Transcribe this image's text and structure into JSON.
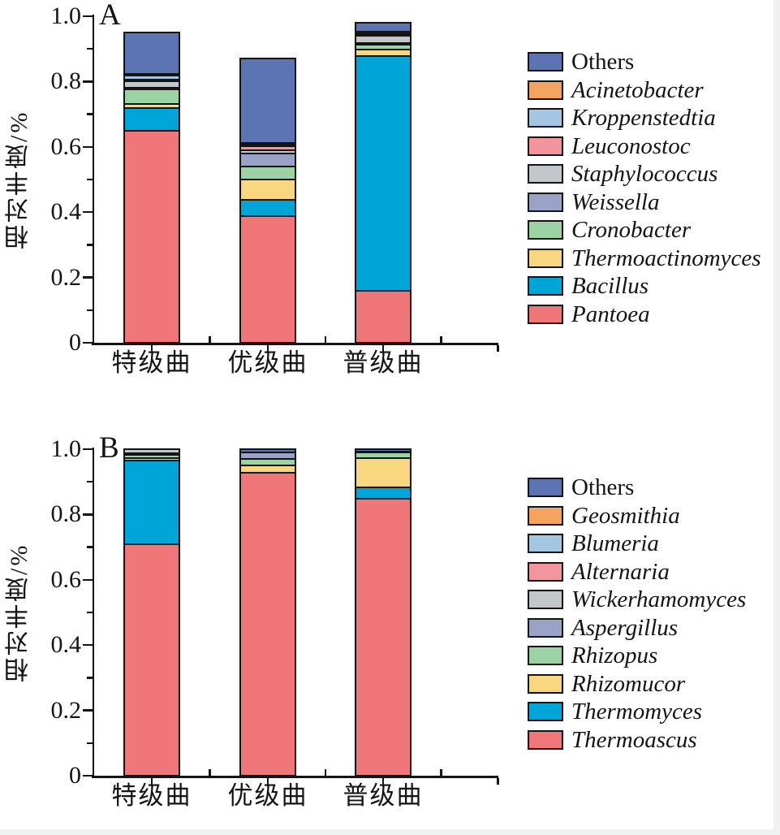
{
  "figure": {
    "description_visible_text_only": true,
    "panels_count": 2
  },
  "chart_data": [
    {
      "panel_label": "A",
      "type": "bar",
      "stacked": true,
      "title": "",
      "ylabel": "相对丰度/%",
      "xlabel": "",
      "ylim": [
        0,
        1.0
      ],
      "ytick_labels": [
        "0",
        "0.2",
        "0.4",
        "0.6",
        "0.8",
        "1.0"
      ],
      "ytick_values": [
        0,
        0.2,
        0.4,
        0.6,
        0.8,
        1.0
      ],
      "ytick_minor_step": 0.1,
      "grid": false,
      "legend_position": "right",
      "categories": [
        "特级曲",
        "优级曲",
        "普级曲"
      ],
      "bar_totals": [
        0.95,
        0.87,
        0.98
      ],
      "legend_order_top_to_bottom": [
        "Others",
        "Acinetobacter",
        "Kroppenstedtia",
        "Leuconostoc",
        "Staphylococcus",
        "Weissella",
        "Cronobacter",
        "Thermoactinomyces",
        "Bacillus",
        "Pantoea"
      ],
      "series": [
        {
          "name": "Pantoea",
          "color": "#F07679",
          "italic": true,
          "values": [
            0.65,
            0.39,
            0.16
          ]
        },
        {
          "name": "Bacillus",
          "color": "#00A5D8",
          "italic": true,
          "values": [
            0.07,
            0.05,
            0.72
          ]
        },
        {
          "name": "Thermoactinomyces",
          "color": "#F9D781",
          "italic": true,
          "values": [
            0.012,
            0.06,
            0.02
          ]
        },
        {
          "name": "Cronobacter",
          "color": "#9CD3A4",
          "italic": true,
          "values": [
            0.045,
            0.04,
            0.015
          ]
        },
        {
          "name": "Weissella",
          "color": "#98A3C7",
          "italic": true,
          "values": [
            0.006,
            0.04,
            0.004
          ]
        },
        {
          "name": "Staphylococcus",
          "color": "#C3C7C9",
          "italic": true,
          "values": [
            0.02,
            0.012,
            0.025
          ]
        },
        {
          "name": "Leuconostoc",
          "color": "#F2949B",
          "italic": true,
          "values": [
            0.004,
            0.012,
            0.003
          ]
        },
        {
          "name": "Kroppenstedtia",
          "color": "#A3C6E2",
          "italic": true,
          "values": [
            0.015,
            0.006,
            0.004
          ]
        },
        {
          "name": "Acinetobacter",
          "color": "#F5A45F",
          "italic": true,
          "values": [
            0.003,
            0.004,
            0.003
          ]
        },
        {
          "name": "Others",
          "color": "#5C74B4",
          "italic": false,
          "values": [
            0.125,
            0.256,
            0.026
          ]
        }
      ]
    },
    {
      "panel_label": "B",
      "type": "bar",
      "stacked": true,
      "title": "",
      "ylabel": "相对丰度/%",
      "xlabel": "",
      "ylim": [
        0,
        1.0
      ],
      "ytick_labels": [
        "0",
        "0.2",
        "0.4",
        "0.6",
        "0.8",
        "1.0"
      ],
      "ytick_values": [
        0,
        0.2,
        0.4,
        0.6,
        0.8,
        1.0
      ],
      "ytick_minor_step": 0.1,
      "grid": false,
      "legend_position": "right",
      "categories": [
        "特级曲",
        "优级曲",
        "普级曲"
      ],
      "bar_totals": [
        1.0,
        1.0,
        1.0
      ],
      "legend_order_top_to_bottom": [
        "Others",
        "Geosmithia",
        "Blumeria",
        "Alternaria",
        "Wickerhamomyces",
        "Aspergillus",
        "Rhizopus",
        "Rhizomucor",
        "Thermomyces",
        "Thermoascus"
      ],
      "series": [
        {
          "name": "Thermoascus",
          "color": "#F07679",
          "italic": true,
          "values": [
            0.71,
            0.93,
            0.85
          ]
        },
        {
          "name": "Thermomyces",
          "color": "#00A5D8",
          "italic": true,
          "values": [
            0.257,
            0,
            0.035
          ]
        },
        {
          "name": "Rhizomucor",
          "color": "#F9D781",
          "italic": true,
          "values": [
            0.008,
            0.022,
            0.09
          ]
        },
        {
          "name": "Rhizopus",
          "color": "#9CD3A4",
          "italic": true,
          "values": [
            0.009,
            0.02,
            0.018
          ]
        },
        {
          "name": "Aspergillus",
          "color": "#98A3C7",
          "italic": true,
          "values": [
            0.004,
            0.02,
            0
          ]
        },
        {
          "name": "Wickerhamomyces",
          "color": "#C3C7C9",
          "italic": true,
          "values": [
            0.012,
            0,
            0.004
          ]
        },
        {
          "name": "Alternaria",
          "color": "#F2949B",
          "italic": true,
          "values": [
            0,
            0,
            0
          ]
        },
        {
          "name": "Blumeria",
          "color": "#A3C6E2",
          "italic": true,
          "values": [
            0,
            0,
            0
          ]
        },
        {
          "name": "Geosmithia",
          "color": "#F5A45F",
          "italic": true,
          "values": [
            0,
            0,
            0
          ]
        },
        {
          "name": "Others",
          "color": "#5C74B4",
          "italic": false,
          "values": [
            0,
            0.008,
            0.003
          ]
        }
      ]
    }
  ]
}
